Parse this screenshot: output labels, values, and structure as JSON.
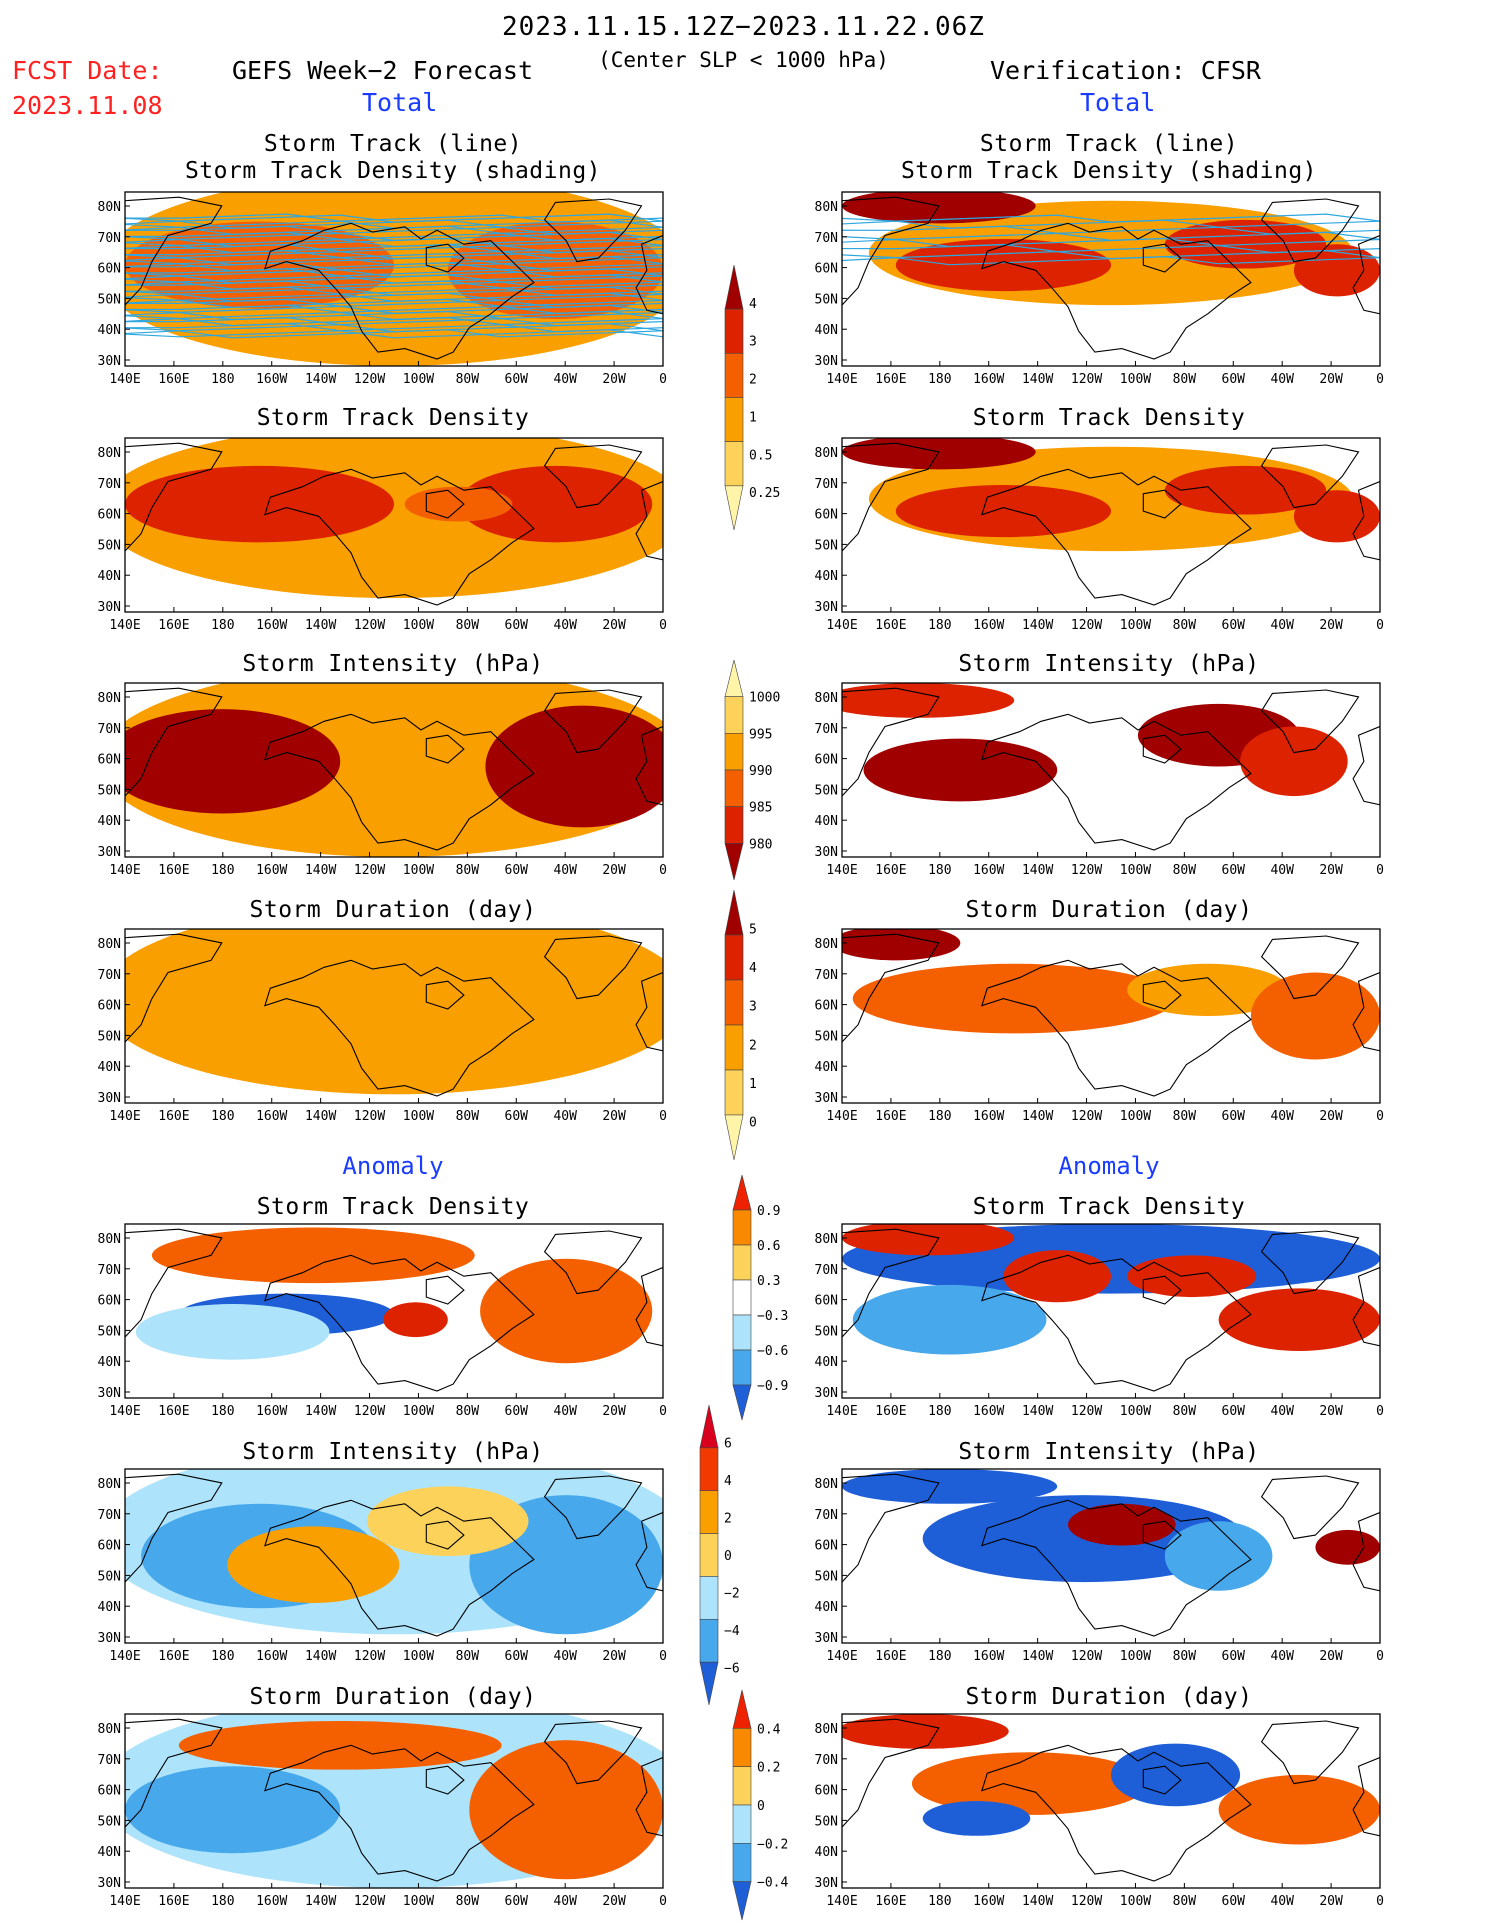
{
  "header": {
    "date_range": "2023.11.15.12Z−2023.11.22.06Z",
    "subtitle": "(Center SLP < 1000 hPa)",
    "fcst_label": "FCST Date:",
    "fcst_date": "2023.11.08",
    "left_title": "GEFS Week−2 Forecast",
    "right_title": "Verification: CFSR",
    "left_section": "Total",
    "right_section": "Total"
  },
  "sections": {
    "anomaly_left": "Anomaly",
    "anomaly_right": "Anomaly"
  },
  "panel_titles": {
    "track_line": "Storm Track (line)",
    "track_shading": "Storm Track Density (shading)",
    "density": "Storm Track Density",
    "intensity": "Storm Intensity (hPa)",
    "duration": "Storm Duration (day)"
  },
  "axes": {
    "lon_labels": [
      "140E",
      "160E",
      "180",
      "160W",
      "140W",
      "120W",
      "100W",
      "80W",
      "60W",
      "40W",
      "20W",
      "0"
    ],
    "lat_labels": [
      "80N",
      "70N",
      "60N",
      "50N",
      "40N",
      "30N"
    ]
  },
  "colorbars": {
    "density_total": {
      "labels": [
        "4",
        "3",
        "2",
        "1",
        "0.5",
        "0.25"
      ],
      "colors": [
        "#a00000",
        "#dd2200",
        "#f45f00",
        "#f99f00",
        "#fcd25a",
        "#fff4a8"
      ]
    },
    "intensity_total": {
      "labels": [
        "1000",
        "995",
        "990",
        "985",
        "980"
      ],
      "colors": [
        "#fff4a8",
        "#fcd25a",
        "#f99f00",
        "#f45f00",
        "#dd2200",
        "#a00000"
      ]
    },
    "duration_total": {
      "labels": [
        "5",
        "4",
        "3",
        "2",
        "1",
        "0"
      ],
      "colors": [
        "#a00000",
        "#dd2200",
        "#f45f00",
        "#f99f00",
        "#fcd25a",
        "#fff4a8"
      ]
    },
    "density_anom": {
      "labels": [
        "0.9",
        "0.6",
        "0.3",
        "−0.3",
        "−0.6",
        "−0.9"
      ],
      "colors": [
        "#ee2200",
        "#f98a00",
        "#fcd25a",
        "#ffffff",
        "#aee4fb",
        "#47a8ec",
        "#1e5fd8"
      ]
    },
    "intensity_anom": {
      "labels": [
        "6",
        "4",
        "2",
        "0",
        "−2",
        "−4",
        "−6"
      ],
      "colors": [
        "#d8001c",
        "#f23a00",
        "#f99f00",
        "#fcd25a",
        "#aee4fb",
        "#47a8ec",
        "#1e5fd8"
      ]
    },
    "duration_anom": {
      "labels": [
        "0.4",
        "0.2",
        "0",
        "−0.2",
        "−0.4"
      ],
      "colors": [
        "#ee2200",
        "#f98a00",
        "#fcd25a",
        "#aee4fb",
        "#47a8ec",
        "#1e5fd8"
      ]
    }
  },
  "palette": {
    "dark_red": "#a00000",
    "red": "#dd2200",
    "orange_red": "#f45f00",
    "orange": "#f99f00",
    "yellow": "#fcd25a",
    "pale_yellow": "#fff4a8",
    "light_blue": "#aee4fb",
    "blue": "#47a8ec",
    "dark_blue": "#1e5fd8",
    "track_line": "#2ea7e0"
  }
}
